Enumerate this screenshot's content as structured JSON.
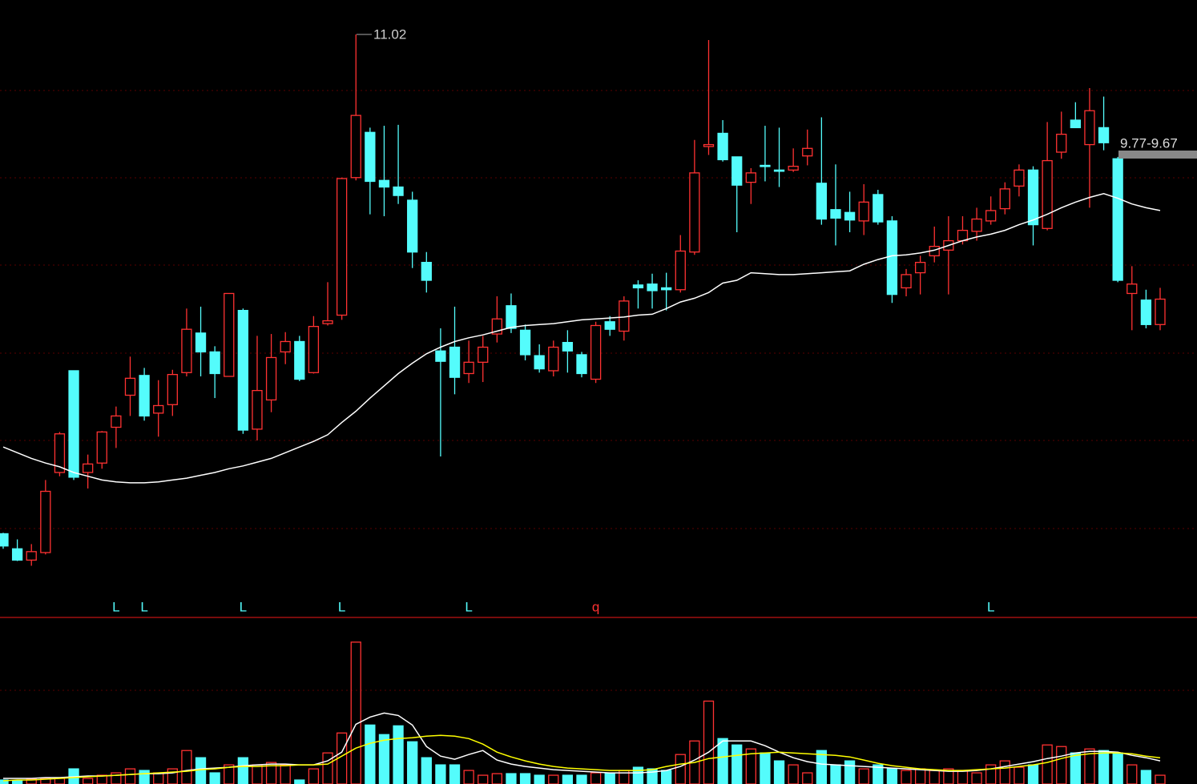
{
  "chart_data": {
    "type": "candlestick",
    "ylim": [
      4.84,
      11.385
    ],
    "up_color": "#FF3232",
    "down_color": "#54FCFC",
    "candles": {
      "open": [
        5.72,
        5.56,
        5.44,
        5.52,
        6.37,
        7.45,
        6.37,
        6.47,
        6.85,
        7.19,
        7.4,
        7.0,
        7.09,
        7.43,
        7.85,
        7.65,
        7.39,
        8.09,
        6.83,
        7.14,
        7.65,
        7.76,
        7.43,
        7.95,
        8.04,
        9.5,
        9.98,
        9.47,
        9.4,
        9.26,
        8.6,
        7.66,
        7.7,
        7.42,
        7.54,
        7.84,
        8.14,
        7.88,
        7.61,
        7.45,
        7.75,
        7.62,
        7.36,
        7.97,
        7.87,
        8.36,
        8.37,
        8.33,
        8.31,
        8.71,
        9.83,
        9.97,
        9.72,
        9.45,
        9.63,
        9.58,
        9.58,
        9.73,
        9.44,
        9.16,
        9.13,
        9.04,
        9.32,
        9.04,
        8.33,
        8.49,
        8.67,
        8.73,
        8.83,
        8.93,
        9.04,
        9.17,
        9.41,
        9.58,
        8.96,
        9.77,
        10.11,
        9.85,
        10.03,
        9.7,
        8.27,
        8.2,
        7.94
      ],
      "high": [
        5.73,
        5.66,
        5.61,
        6.29,
        6.8,
        7.45,
        6.56,
        6.81,
        7.07,
        7.6,
        7.48,
        7.35,
        7.46,
        8.11,
        8.13,
        7.71,
        8.27,
        8.11,
        7.82,
        7.84,
        7.86,
        7.82,
        8.03,
        8.39,
        9.5,
        11.02,
        10.03,
        10.05,
        10.06,
        9.35,
        8.71,
        7.9,
        8.13,
        7.77,
        7.82,
        8.24,
        8.27,
        7.94,
        7.73,
        7.77,
        7.88,
        7.65,
        7.97,
        8.03,
        8.24,
        8.41,
        8.48,
        8.49,
        8.89,
        9.9,
        10.96,
        10.11,
        9.72,
        9.6,
        10.05,
        10.03,
        9.81,
        10.01,
        10.14,
        9.64,
        9.35,
        9.43,
        9.37,
        9.09,
        8.53,
        8.67,
        8.98,
        9.09,
        9.09,
        9.18,
        9.3,
        9.45,
        9.64,
        9.62,
        10.09,
        10.2,
        10.3,
        10.45,
        10.36,
        9.72,
        8.56,
        8.31,
        8.33
      ],
      "low": [
        5.56,
        5.43,
        5.38,
        5.5,
        6.33,
        6.29,
        6.2,
        6.41,
        6.63,
        6.97,
        6.92,
        6.75,
        6.97,
        7.39,
        7.39,
        7.16,
        7.39,
        6.78,
        6.71,
        7.01,
        7.52,
        7.34,
        7.42,
        7.93,
        7.99,
        9.47,
        9.11,
        9.09,
        9.22,
        8.54,
        8.28,
        6.54,
        7.2,
        7.32,
        7.33,
        7.75,
        7.85,
        7.56,
        7.43,
        7.39,
        7.43,
        7.38,
        7.32,
        7.82,
        7.77,
        8.11,
        8.11,
        8.09,
        8.28,
        8.68,
        9.74,
        9.67,
        8.92,
        9.22,
        9.46,
        9.4,
        9.56,
        9.63,
        9.0,
        8.78,
        8.92,
        8.89,
        9.0,
        8.17,
        8.24,
        8.26,
        8.6,
        8.26,
        8.79,
        8.83,
        9.0,
        9.11,
        9.3,
        8.78,
        8.94,
        9.7,
        10.03,
        9.18,
        9.79,
        8.39,
        7.88,
        7.9,
        7.88
      ],
      "close": [
        5.59,
        5.44,
        5.53,
        6.17,
        6.78,
        6.32,
        6.46,
        6.8,
        6.97,
        7.37,
        6.97,
        7.08,
        7.41,
        7.89,
        7.65,
        7.42,
        8.27,
        6.82,
        7.24,
        7.59,
        7.76,
        7.36,
        7.92,
        7.98,
        9.49,
        10.16,
        9.46,
        9.4,
        9.31,
        8.71,
        8.41,
        7.55,
        7.38,
        7.54,
        7.7,
        8.0,
        7.9,
        7.62,
        7.47,
        7.7,
        7.66,
        7.42,
        7.93,
        7.89,
        8.19,
        8.33,
        8.3,
        8.31,
        8.72,
        9.55,
        9.85,
        9.69,
        9.42,
        9.55,
        9.62,
        9.57,
        9.62,
        9.81,
        9.06,
        9.07,
        9.05,
        9.24,
        9.03,
        8.26,
        8.47,
        8.6,
        8.77,
        8.83,
        8.94,
        9.06,
        9.15,
        9.38,
        9.58,
        9.0,
        9.68,
        9.96,
        10.03,
        10.21,
        9.87,
        8.41,
        8.37,
        7.94,
        8.21
      ]
    },
    "ma": {
      "color": "#FFFFFF",
      "values": [
        6.64,
        6.58,
        6.52,
        6.47,
        6.43,
        6.37,
        6.33,
        6.29,
        6.27,
        6.26,
        6.26,
        6.27,
        6.29,
        6.31,
        6.34,
        6.37,
        6.41,
        6.44,
        6.48,
        6.52,
        6.58,
        6.64,
        6.7,
        6.77,
        6.9,
        7.02,
        7.16,
        7.29,
        7.42,
        7.53,
        7.63,
        7.7,
        7.76,
        7.8,
        7.83,
        7.87,
        7.91,
        7.93,
        7.94,
        7.95,
        7.97,
        7.99,
        8.0,
        8.01,
        8.02,
        8.04,
        8.05,
        8.11,
        8.18,
        8.22,
        8.28,
        8.38,
        8.41,
        8.49,
        8.48,
        8.47,
        8.47,
        8.48,
        8.49,
        8.5,
        8.51,
        8.58,
        8.63,
        8.67,
        8.68,
        8.7,
        8.73,
        8.78,
        8.83,
        8.87,
        8.9,
        8.94,
        9.0,
        9.05,
        9.11,
        9.18,
        9.24,
        9.29,
        9.33,
        9.28,
        9.22,
        9.18,
        9.15
      ]
    },
    "signals": [
      null,
      null,
      null,
      null,
      null,
      null,
      null,
      null,
      "L",
      null,
      "L",
      null,
      null,
      null,
      null,
      null,
      null,
      "L",
      null,
      null,
      null,
      null,
      null,
      null,
      "L",
      null,
      null,
      null,
      null,
      null,
      null,
      null,
      null,
      "L",
      null,
      null,
      null,
      null,
      null,
      null,
      null,
      null,
      "q",
      null,
      null,
      null,
      null,
      null,
      null,
      null,
      null,
      null,
      null,
      null,
      null,
      null,
      null,
      null,
      null,
      null,
      null,
      null,
      null,
      null,
      null,
      null,
      null,
      null,
      null,
      null,
      "L",
      null,
      null,
      null,
      null,
      null,
      null,
      null,
      null,
      null,
      null,
      null,
      null
    ],
    "signal_colors": {
      "L": "#54FCFC",
      "q": "#FF3232"
    },
    "high_label": "11.02",
    "last_label": "9.77-9.67",
    "volume": {
      "ylim": [
        0,
        209
      ],
      "values": [
        5,
        4,
        6,
        7,
        7,
        19,
        7,
        11,
        14,
        19,
        17,
        14,
        19,
        42,
        33,
        14,
        24,
        33,
        24,
        27,
        24,
        5,
        19,
        39,
        64,
        178,
        74,
        62,
        73,
        53,
        33,
        24,
        24,
        17,
        11,
        13,
        13,
        13,
        11,
        11,
        11,
        11,
        14,
        13,
        17,
        21,
        19,
        17,
        37,
        54,
        104,
        57,
        49,
        44,
        39,
        29,
        24,
        14,
        42,
        24,
        29,
        19,
        24,
        19,
        17,
        19,
        17,
        19,
        17,
        14,
        24,
        29,
        21,
        24,
        49,
        47,
        39,
        44,
        42,
        39,
        24,
        17,
        11
      ],
      "ma": [
        {
          "color": "#FFFFFF",
          "values": [
            7,
            7,
            7,
            8,
            8,
            9,
            10,
            10,
            11,
            12,
            13,
            13,
            14,
            17,
            19,
            20,
            21,
            23,
            24,
            25,
            25,
            24,
            24,
            29,
            40,
            75,
            84,
            89,
            86,
            74,
            47,
            35,
            31,
            37,
            42,
            30,
            25,
            22,
            20,
            18,
            17,
            16,
            15,
            14,
            14,
            14,
            15,
            17,
            22,
            30,
            40,
            54,
            54,
            54,
            48,
            40,
            33,
            28,
            25,
            24,
            23,
            22,
            21,
            20,
            19,
            18,
            17,
            16,
            16,
            17,
            19,
            22,
            25,
            28,
            32,
            35,
            39,
            41,
            41,
            40,
            36,
            33,
            29
          ]
        },
        {
          "color": "#FFFF00",
          "values": [
            4,
            5,
            5,
            6,
            7,
            8,
            9,
            10,
            11,
            12,
            13,
            14,
            15,
            16,
            18,
            19,
            21,
            22,
            22,
            23,
            23,
            24,
            24,
            25,
            35,
            45,
            51,
            55,
            57,
            58,
            60,
            61,
            60,
            57,
            50,
            40,
            34,
            29,
            25,
            22,
            20,
            19,
            18,
            17,
            17,
            17,
            18,
            22,
            25,
            27,
            32,
            34,
            36,
            38,
            39,
            40,
            39,
            38,
            37,
            36,
            34,
            30,
            26,
            23,
            21,
            19,
            18,
            17,
            17,
            18,
            19,
            20,
            22,
            24,
            27,
            32,
            36,
            38,
            39,
            39,
            38,
            35,
            33
          ]
        }
      ]
    }
  }
}
